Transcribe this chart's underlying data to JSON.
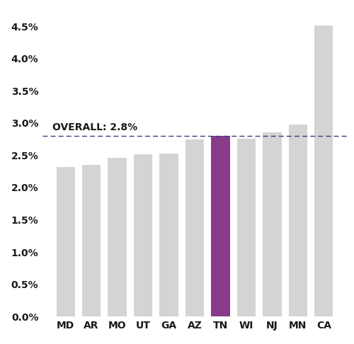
{
  "categories": [
    "MD",
    "AR",
    "MO",
    "UT",
    "GA",
    "AZ",
    "TN",
    "WI",
    "NJ",
    "MN",
    "CA"
  ],
  "values": [
    2.32,
    2.35,
    2.46,
    2.52,
    2.53,
    2.75,
    2.8,
    2.76,
    2.86,
    2.98,
    4.52
  ],
  "bar_colors": [
    "#d4d4d4",
    "#d4d4d4",
    "#d4d4d4",
    "#d4d4d4",
    "#d4d4d4",
    "#d4d4d4",
    "#893a89",
    "#d4d4d4",
    "#d4d4d4",
    "#d4d4d4",
    "#d4d4d4"
  ],
  "overall_line": 2.8,
  "overall_label": "OVERALL: 2.8%",
  "overall_line_color": "#3d3580",
  "ylim": [
    0,
    4.75
  ],
  "yticks": [
    0.0,
    0.5,
    1.0,
    1.5,
    2.0,
    2.5,
    3.0,
    3.5,
    4.0,
    4.5
  ],
  "background_color": "#ffffff",
  "tick_fontsize": 10,
  "overall_label_fontsize": 10,
  "overall_label_color": "#1a1a1a",
  "bar_width": 0.72
}
